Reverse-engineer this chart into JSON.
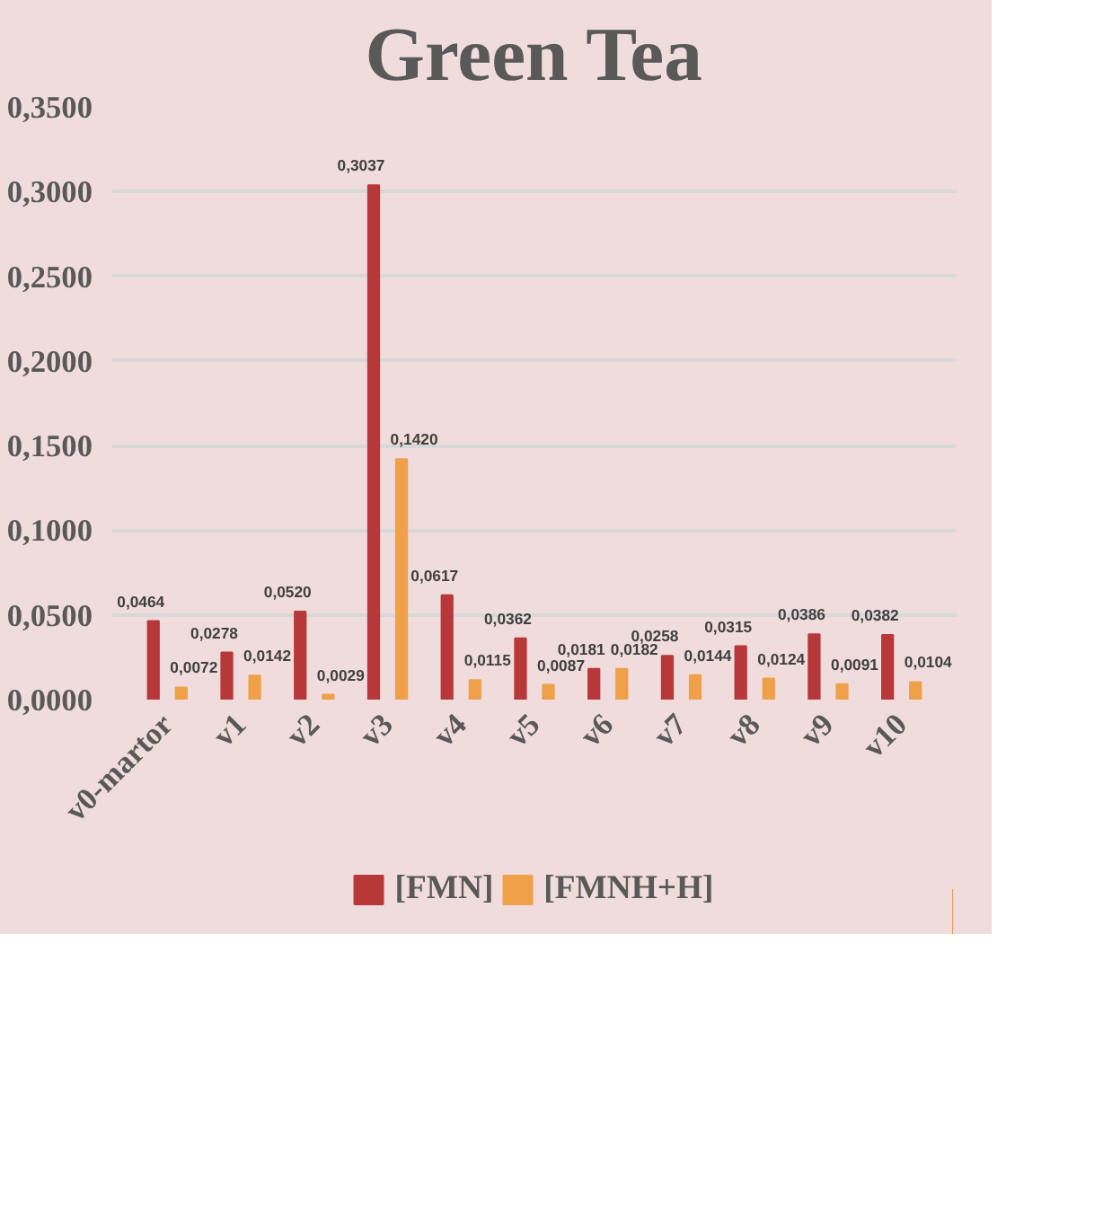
{
  "chart_data": {
    "type": "bar",
    "title": "Green Tea",
    "categories": [
      "v0-martor",
      "v1",
      "v2",
      "v3",
      "v4",
      "v5",
      "v6",
      "v7",
      "v8",
      "v9",
      "v10"
    ],
    "series": [
      {
        "name": "[FMN]",
        "color": "#b8383a",
        "values": [
          0.0464,
          0.0278,
          0.052,
          0.3037,
          0.0617,
          0.0362,
          0.0181,
          0.0258,
          0.0315,
          0.0386,
          0.0382
        ],
        "value_labels": [
          "0,0464",
          "0,0278",
          "0,0520",
          "0,3037",
          "0,0617",
          "0,0362",
          "0,0181",
          "0,0258",
          "0,0315",
          "0,0386",
          "0,0382"
        ]
      },
      {
        "name": "[FMNH+H]",
        "color": "#f0a048",
        "values": [
          0.0072,
          0.0142,
          0.0029,
          0.142,
          0.0115,
          0.0087,
          0.0182,
          0.0144,
          0.0124,
          0.0091,
          0.0104
        ],
        "value_labels": [
          "0,0072",
          "0,0142",
          "0,0029",
          "0,1420",
          "0,0115",
          "0,0087",
          "0,0182",
          "0,0144",
          "0,0124",
          "0,0091",
          "0,0104"
        ]
      }
    ],
    "ylim": [
      0,
      0.35
    ],
    "yticks": [
      {
        "value": 0,
        "label": "0,0000"
      },
      {
        "value": 0.05,
        "label": "0,0500"
      },
      {
        "value": 0.1,
        "label": "0,1000"
      },
      {
        "value": 0.15,
        "label": "0,1500"
      },
      {
        "value": 0.2,
        "label": "0,2000"
      },
      {
        "value": 0.25,
        "label": "0,2500"
      },
      {
        "value": 0.3,
        "label": "0,3000"
      },
      {
        "value": 0.35,
        "label": "0,3500"
      }
    ],
    "grid": "y",
    "legend": "bottom"
  }
}
